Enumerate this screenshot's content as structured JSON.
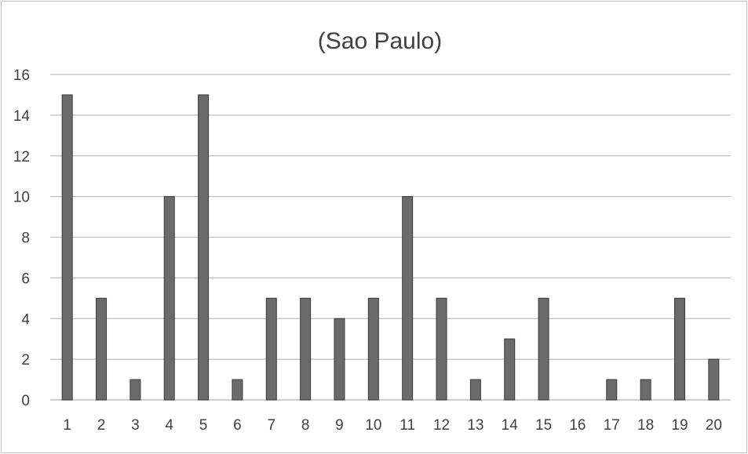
{
  "chart_data": {
    "type": "bar",
    "title": "(Sao Paulo)",
    "xlabel": "",
    "ylabel": "",
    "categories": [
      "1",
      "2",
      "3",
      "4",
      "5",
      "6",
      "7",
      "8",
      "9",
      "10",
      "11",
      "12",
      "13",
      "14",
      "15",
      "16",
      "17",
      "18",
      "19",
      "20"
    ],
    "values": [
      15,
      5,
      1,
      10,
      15,
      1,
      5,
      5,
      4,
      5,
      10,
      5,
      1,
      3,
      5,
      0,
      1,
      1,
      5,
      2
    ],
    "ylim": [
      0,
      16
    ],
    "yticks": [
      0,
      2,
      4,
      6,
      8,
      10,
      12,
      14,
      16
    ],
    "grid": true,
    "legend": "none",
    "colors": {
      "bar": "#6b6b6b",
      "bar_border": "#3a3a3a",
      "grid": "#bfbfbf",
      "text": "#404040"
    }
  }
}
